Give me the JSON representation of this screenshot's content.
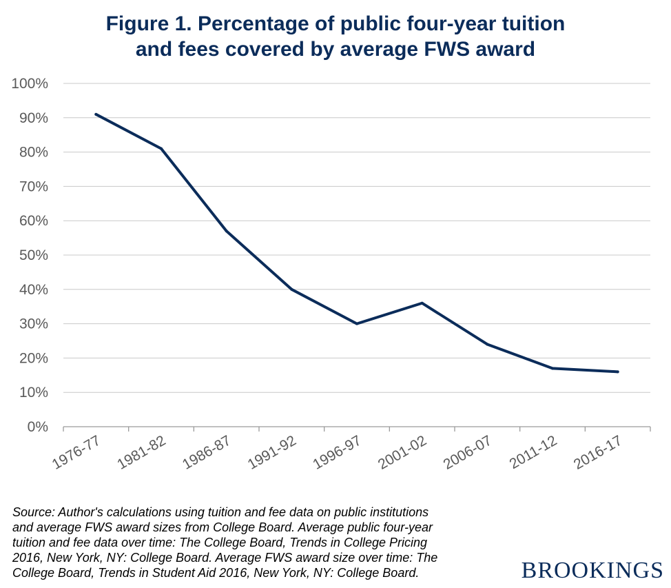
{
  "title_lines": [
    "Figure 1. Percentage of public four-year tuition",
    "and fees covered by average FWS award"
  ],
  "colors": {
    "title": "#0b2c5a",
    "line": "#0b2c5a",
    "grid": "#c8c8c8",
    "axis_text": "#595959"
  },
  "chart_data": {
    "type": "line",
    "title": "Figure 1. Percentage of public four-year tuition and fees covered by average FWS award",
    "xlabel": "",
    "ylabel": "",
    "categories": [
      "1976-77",
      "1981-82",
      "1986-87",
      "1991-92",
      "1996-97",
      "2001-02",
      "2006-07",
      "2011-12",
      "2016-17"
    ],
    "series": [
      {
        "values": [
          91,
          81,
          57,
          40,
          30,
          36,
          24,
          17,
          16
        ]
      }
    ],
    "ylim": [
      0,
      100
    ],
    "yticks": [
      "0%",
      "10%",
      "20%",
      "30%",
      "40%",
      "50%",
      "60%",
      "70%",
      "80%",
      "90%",
      "100%"
    ],
    "grid": true,
    "legend": "none"
  },
  "source_lines": [
    "Source: Author's calculations using tuition and fee data on public institutions",
    "and average FWS award sizes from College Board. Average public four-year",
    "tuition and fee data over time: The College Board, Trends in College Pricing",
    "2016, New York, NY: College Board. Average FWS award size over time: The",
    "College Board, Trends in Student Aid 2016, New York, NY: College Board."
  ],
  "logo_text": "BROOKINGS"
}
